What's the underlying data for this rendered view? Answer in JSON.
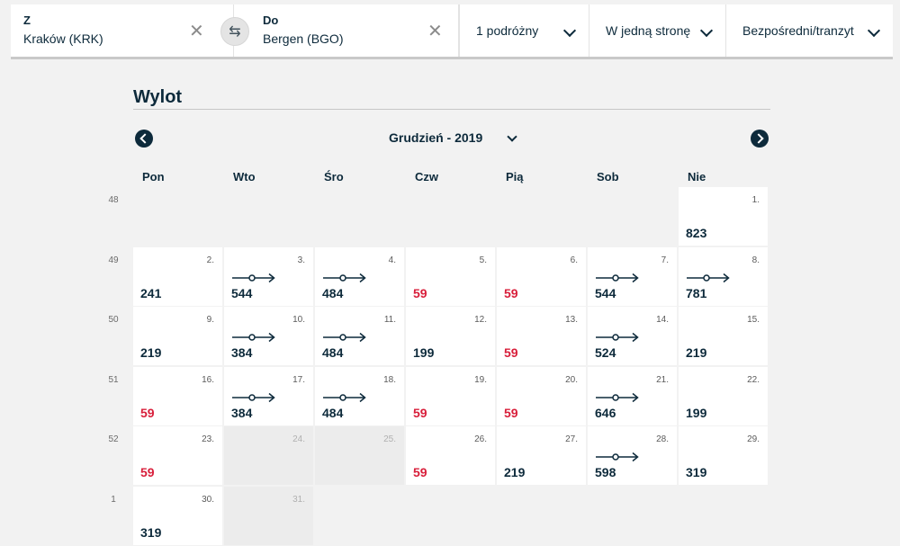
{
  "search": {
    "from_label": "Z",
    "from_value": "Kraków (KRK)",
    "to_label": "Do",
    "to_value": "Bergen (BGO)",
    "clear_glyph": "✕",
    "swap_glyph": "⇆",
    "passengers": "1 podróżny",
    "trip_type": "W jedną stronę",
    "connection": "Bezpośredni/tranzyt"
  },
  "calendar": {
    "title": "Wylot",
    "month": "Grudzień - 2019",
    "weekdays": [
      "Pon",
      "Wto",
      "Śro",
      "Czw",
      "Pią",
      "Sob",
      "Nie"
    ],
    "weeks": [
      {
        "num": "48",
        "days": [
          null,
          null,
          null,
          null,
          null,
          null,
          {
            "day": "1.",
            "price": "823"
          }
        ]
      },
      {
        "num": "49",
        "days": [
          {
            "day": "2.",
            "price": "241"
          },
          {
            "day": "3.",
            "price": "544",
            "transit": true
          },
          {
            "day": "4.",
            "price": "484",
            "transit": true
          },
          {
            "day": "5.",
            "price": "59",
            "cheap": true
          },
          {
            "day": "6.",
            "price": "59",
            "cheap": true
          },
          {
            "day": "7.",
            "price": "544",
            "transit": true
          },
          {
            "day": "8.",
            "price": "781",
            "transit": true
          }
        ]
      },
      {
        "num": "50",
        "days": [
          {
            "day": "9.",
            "price": "219"
          },
          {
            "day": "10.",
            "price": "384",
            "transit": true
          },
          {
            "day": "11.",
            "price": "484",
            "transit": true
          },
          {
            "day": "12.",
            "price": "199"
          },
          {
            "day": "13.",
            "price": "59",
            "cheap": true
          },
          {
            "day": "14.",
            "price": "524",
            "transit": true
          },
          {
            "day": "15.",
            "price": "219"
          }
        ]
      },
      {
        "num": "51",
        "days": [
          {
            "day": "16.",
            "price": "59",
            "cheap": true
          },
          {
            "day": "17.",
            "price": "384",
            "transit": true
          },
          {
            "day": "18.",
            "price": "484",
            "transit": true
          },
          {
            "day": "19.",
            "price": "59",
            "cheap": true
          },
          {
            "day": "20.",
            "price": "59",
            "cheap": true
          },
          {
            "day": "21.",
            "price": "646",
            "transit": true
          },
          {
            "day": "22.",
            "price": "199"
          }
        ]
      },
      {
        "num": "52",
        "days": [
          {
            "day": "23.",
            "price": "59",
            "cheap": true
          },
          {
            "day": "24.",
            "disabled": true
          },
          {
            "day": "25.",
            "disabled": true
          },
          {
            "day": "26.",
            "price": "59",
            "cheap": true
          },
          {
            "day": "27.",
            "price": "219"
          },
          {
            "day": "28.",
            "price": "598",
            "transit": true
          },
          {
            "day": "29.",
            "price": "319"
          }
        ]
      },
      {
        "num": "1",
        "days": [
          {
            "day": "30.",
            "price": "319"
          },
          {
            "day": "31.",
            "disabled": true
          },
          null,
          null,
          null,
          null,
          null
        ]
      }
    ]
  },
  "colors": {
    "navy": "#0d2a3b",
    "cheap": "#d81e3a"
  },
  "icons": {
    "transit": "transit-stop-icon",
    "nav_prev": "chevron-left-icon",
    "nav_next": "chevron-right-icon"
  }
}
